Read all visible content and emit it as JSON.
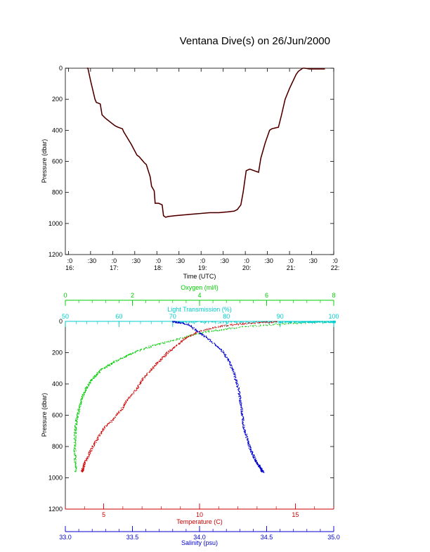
{
  "title": "Ventana Dive(s) on 26/Jun/2000",
  "chart_data": [
    {
      "type": "line",
      "ylabel": "Pressure (dbar)",
      "xlabel": "Time (UTC)",
      "ylim": [
        1200,
        0
      ],
      "yticks": [
        "0",
        "200",
        "400",
        "600",
        "800",
        "1000",
        "1200"
      ],
      "xticks": [
        {
          "t": 16.0,
          "top": ":0",
          "bottom": "16:"
        },
        {
          "t": 16.5,
          "top": ":30",
          "bottom": ""
        },
        {
          "t": 17.0,
          "top": ":0",
          "bottom": "17:"
        },
        {
          "t": 17.5,
          "top": ":30",
          "bottom": ""
        },
        {
          "t": 18.0,
          "top": ":0",
          "bottom": "18:"
        },
        {
          "t": 18.5,
          "top": ":30",
          "bottom": ""
        },
        {
          "t": 19.0,
          "top": ":0",
          "bottom": "19:"
        },
        {
          "t": 19.5,
          "top": ":30",
          "bottom": ""
        },
        {
          "t": 20.0,
          "top": ":0",
          "bottom": "20:"
        },
        {
          "t": 20.5,
          "top": ":30",
          "bottom": ""
        },
        {
          "t": 21.0,
          "top": ":0",
          "bottom": "21:"
        },
        {
          "t": 21.5,
          "top": ":30",
          "bottom": ""
        },
        {
          "t": 22.0,
          "top": ":0",
          "bottom": "22:"
        }
      ],
      "xlim": [
        15.93,
        22.0
      ],
      "series": [
        {
          "color": "#000000",
          "x": [
            16.42,
            16.44,
            16.5,
            16.6,
            16.63,
            16.72,
            16.76,
            16.83,
            16.87,
            17.05,
            17.12,
            17.22,
            17.25,
            17.4,
            17.42,
            17.55,
            17.6,
            17.72,
            17.76,
            17.85,
            17.88,
            17.94,
            17.96,
            18.04,
            18.12,
            18.15,
            18.2,
            18.25,
            18.4,
            18.6,
            18.8,
            19.0,
            19.2,
            19.4,
            19.6,
            19.75,
            19.82,
            19.9,
            19.95,
            20.02,
            20.1,
            20.2,
            20.3,
            20.35,
            20.45,
            20.55,
            20.6,
            20.75,
            20.82,
            20.9,
            21.0,
            21.05,
            21.15,
            21.2,
            21.3,
            21.35,
            21.45,
            21.5,
            21.56,
            21.7,
            21.8
          ],
          "y": [
            0,
            0,
            80,
            200,
            220,
            230,
            300,
            320,
            330,
            370,
            380,
            390,
            410,
            480,
            490,
            560,
            570,
            610,
            620,
            700,
            760,
            790,
            870,
            870,
            880,
            950,
            960,
            955,
            950,
            945,
            940,
            935,
            930,
            930,
            925,
            920,
            910,
            880,
            800,
            660,
            650,
            660,
            670,
            580,
            480,
            400,
            390,
            380,
            300,
            200,
            130,
            100,
            40,
            20,
            0,
            0,
            5,
            5,
            5,
            5,
            5
          ]
        }
      ]
    },
    {
      "type": "scatter",
      "ylabel": "Pressure (dbar)",
      "ylim": [
        1200,
        0
      ],
      "yticks": [
        "0",
        "200",
        "400",
        "600",
        "800",
        "1000",
        "1200"
      ],
      "axes": [
        {
          "label": "Oxygen (ml/l)",
          "position": "top",
          "color": "#00cc00",
          "lim": [
            0,
            8
          ],
          "ticks": [
            "0",
            "2",
            "4",
            "6",
            "8"
          ]
        },
        {
          "label": "Light Transmission (%)",
          "position": "top",
          "color": "#00cccc",
          "lim": [
            50,
            100
          ],
          "ticks": [
            "50",
            "60",
            "70",
            "80",
            "90",
            "100"
          ]
        },
        {
          "label": "Temperature (C)",
          "position": "bottom",
          "color": "#cc0000",
          "lim": [
            3,
            17
          ],
          "ticks": [
            "5",
            "10",
            "15"
          ]
        },
        {
          "label": "Salinity (psu)",
          "position": "bottom",
          "color": "#0000cc",
          "lim": [
            33.0,
            35.0
          ],
          "ticks": [
            "33.0",
            "33.5",
            "34.0",
            "34.5",
            "35.0"
          ]
        }
      ],
      "series": [
        {
          "name": "Oxygen (ml/l)",
          "axis": 0,
          "color": "#00cc00",
          "x": [
            7.9,
            6.8,
            6.0,
            5.0,
            4.3,
            3.7,
            3.0,
            2.5,
            2.0,
            1.7,
            1.35,
            1.1,
            0.9,
            0.75,
            0.6,
            0.5,
            0.42,
            0.35,
            0.3,
            0.28,
            0.27,
            0.28,
            0.3
          ],
          "y": [
            0,
            10,
            20,
            40,
            60,
            90,
            130,
            160,
            200,
            230,
            270,
            300,
            340,
            380,
            430,
            480,
            540,
            600,
            660,
            720,
            800,
            880,
            960
          ]
        },
        {
          "name": "Light Transmission (%)",
          "axis": 1,
          "color": "#00cccc",
          "x": [
            70,
            74,
            80,
            86,
            90,
            92,
            94,
            95,
            96,
            97,
            99,
            100,
            100,
            100,
            100,
            100,
            100,
            100,
            100,
            100,
            100
          ],
          "y": [
            0,
            3,
            5,
            4,
            3,
            2,
            2,
            2,
            1,
            1,
            1,
            1,
            1,
            1,
            1,
            1,
            1,
            1,
            1,
            1,
            1
          ]
        },
        {
          "name": "Temperature (C)",
          "axis": 2,
          "color": "#cc0000",
          "x": [
            14.0,
            13.0,
            12.0,
            11.0,
            10.0,
            9.3,
            8.8,
            8.3,
            7.9,
            7.5,
            7.0,
            6.7,
            6.2,
            5.9,
            5.5,
            5.0,
            4.7,
            4.4,
            4.2,
            4.0,
            3.9,
            3.85
          ],
          "y": [
            0,
            5,
            15,
            30,
            60,
            100,
            150,
            200,
            250,
            300,
            370,
            430,
            500,
            560,
            620,
            680,
            740,
            800,
            850,
            900,
            940,
            960
          ]
        },
        {
          "name": "Salinity (psu)",
          "axis": 3,
          "color": "#0000cc",
          "x": [
            33.8,
            33.85,
            33.92,
            33.98,
            34.05,
            34.12,
            34.18,
            34.22,
            34.25,
            34.27,
            34.29,
            34.3,
            34.31,
            34.32,
            34.33,
            34.35,
            34.37,
            34.39,
            34.41,
            34.43,
            34.45,
            34.46,
            34.47
          ],
          "y": [
            0,
            5,
            20,
            60,
            100,
            150,
            200,
            260,
            320,
            380,
            440,
            500,
            560,
            620,
            680,
            740,
            800,
            840,
            880,
            910,
            930,
            950,
            960
          ]
        }
      ]
    }
  ]
}
